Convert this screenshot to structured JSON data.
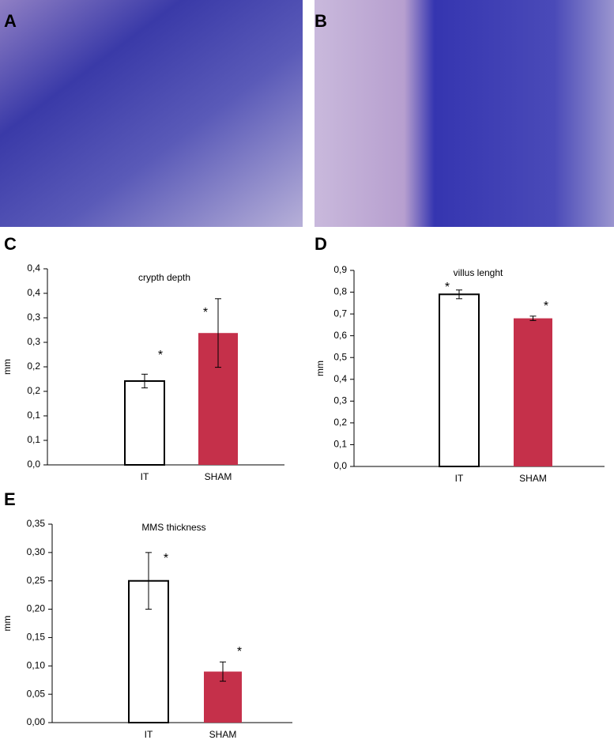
{
  "panel_labels": [
    "A",
    "B",
    "C",
    "D",
    "E"
  ],
  "chart_data": [
    {
      "type": "bar",
      "title": "crypth depth",
      "ylabel": "mm",
      "categories": [
        "IT",
        "SHAM"
      ],
      "values": [
        0.171,
        0.269
      ],
      "errors": [
        0.014,
        0.07
      ],
      "colors": [
        "#ffffff",
        "#c5304a"
      ],
      "edgecolor": "#000000",
      "ylim": [
        0,
        0.4
      ],
      "yticks": [
        {
          "value": 0,
          "label": "0,0"
        },
        {
          "value": 0.05,
          "label": "0,1"
        },
        {
          "value": 0.1,
          "label": "0,1"
        },
        {
          "value": 0.15,
          "label": "0,2"
        },
        {
          "value": 0.2,
          "label": "0,2"
        },
        {
          "value": 0.25,
          "label": "0,3"
        },
        {
          "value": 0.3,
          "label": "0,3"
        },
        {
          "value": 0.35,
          "label": "0,4"
        },
        {
          "value": 0.4,
          "label": "0,4"
        }
      ],
      "annotations": [
        "*",
        "*"
      ]
    },
    {
      "type": "bar",
      "title": "villus lenght",
      "ylabel": "mm",
      "categories": [
        "IT",
        "SHAM"
      ],
      "values": [
        0.79,
        0.68
      ],
      "errors": [
        0.02,
        0.01
      ],
      "colors": [
        "#ffffff",
        "#c5304a"
      ],
      "edgecolor": "#000000",
      "ylim": [
        0,
        0.9
      ],
      "yticks": [
        {
          "value": 0,
          "label": "0,0"
        },
        {
          "value": 0.1,
          "label": "0,1"
        },
        {
          "value": 0.2,
          "label": "0,2"
        },
        {
          "value": 0.3,
          "label": "0,3"
        },
        {
          "value": 0.4,
          "label": "0,4"
        },
        {
          "value": 0.5,
          "label": "0,5"
        },
        {
          "value": 0.6,
          "label": "0,6"
        },
        {
          "value": 0.7,
          "label": "0,7"
        },
        {
          "value": 0.8,
          "label": "0,8"
        },
        {
          "value": 0.9,
          "label": "0,9"
        }
      ],
      "annotations": [
        "*",
        "*"
      ]
    },
    {
      "type": "bar",
      "title": "MMS thickness",
      "ylabel": "mm",
      "categories": [
        "IT",
        "SHAM"
      ],
      "values": [
        0.25,
        0.09
      ],
      "errors": [
        0.05,
        0.017
      ],
      "colors": [
        "#ffffff",
        "#c5304a"
      ],
      "edgecolor": "#000000",
      "ylim": [
        0,
        0.35
      ],
      "yticks": [
        {
          "value": 0,
          "label": "0,00"
        },
        {
          "value": 0.05,
          "label": "0,05"
        },
        {
          "value": 0.1,
          "label": "0,10"
        },
        {
          "value": 0.15,
          "label": "0,15"
        },
        {
          "value": 0.2,
          "label": "0,20"
        },
        {
          "value": 0.25,
          "label": "0,25"
        },
        {
          "value": 0.3,
          "label": "0,30"
        },
        {
          "value": 0.35,
          "label": "0,35"
        }
      ],
      "annotations": [
        "*",
        "*"
      ]
    }
  ]
}
